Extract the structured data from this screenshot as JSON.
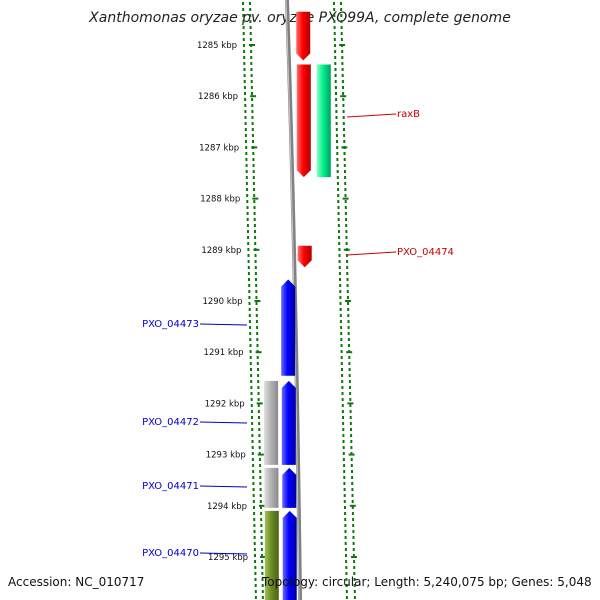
{
  "title": "Xanthomonas oryzae pv. oryzae PXO99A, complete genome",
  "footer": {
    "accession": "Accession: NC_010717",
    "summary": "Topology: circular; Length: 5,240,075 bp; Genes: 5,048"
  },
  "axis": {
    "unit": "kbp",
    "ticks": [
      {
        "value": 1285,
        "label": "1285 kbp"
      },
      {
        "value": 1286,
        "label": "1286 kbp"
      },
      {
        "value": 1287,
        "label": "1287 kbp"
      },
      {
        "value": 1288,
        "label": "1288 kbp"
      },
      {
        "value": 1289,
        "label": "1289 kbp"
      },
      {
        "value": 1290,
        "label": "1290 kbp"
      },
      {
        "value": 1291,
        "label": "1291 kbp"
      },
      {
        "value": 1292,
        "label": "1292 kbp"
      },
      {
        "value": 1293,
        "label": "1293 kbp"
      },
      {
        "value": 1294,
        "label": "1294 kbp"
      },
      {
        "value": 1295,
        "label": "1295 kbp"
      }
    ]
  },
  "genes": [
    {
      "id": "gene-red-1",
      "start": 1284.35,
      "end": 1285.3,
      "track": "forward-1",
      "color": "#ff0000",
      "arrow": "down",
      "label": ""
    },
    {
      "id": "gene-red-2",
      "start": 1285.38,
      "end": 1287.58,
      "track": "forward-1",
      "color": "#ff0000",
      "arrow": "down",
      "label": ""
    },
    {
      "id": "gene-raxB",
      "start": 1285.38,
      "end": 1287.58,
      "track": "forward-2",
      "color": "#00f08c",
      "arrow": "none",
      "label": "raxB"
    },
    {
      "id": "gene-PXO_04474",
      "start": 1288.92,
      "end": 1289.34,
      "track": "forward-1",
      "color": "#ff0000",
      "arrow": "down",
      "label": "PXO_04474"
    },
    {
      "id": "gene-PXO_04473",
      "start": 1289.58,
      "end": 1291.46,
      "track": "reverse-1",
      "color": "#0000ff",
      "arrow": "up",
      "label": "PXO_04473"
    },
    {
      "id": "gene-PXO_04472",
      "start": 1291.56,
      "end": 1293.2,
      "track": "reverse-1",
      "color": "#0000ff",
      "arrow": "up",
      "label": "PXO_04472"
    },
    {
      "id": "gene-grey-1",
      "start": 1291.56,
      "end": 1293.2,
      "track": "reverse-2",
      "color": "#b4b4b4",
      "arrow": "none",
      "label": ""
    },
    {
      "id": "gene-PXO_04471",
      "start": 1293.26,
      "end": 1294.04,
      "track": "reverse-1",
      "color": "#0000ff",
      "arrow": "up",
      "label": "PXO_04471"
    },
    {
      "id": "gene-grey-2",
      "start": 1293.26,
      "end": 1294.04,
      "track": "reverse-2",
      "color": "#b4b4b4",
      "arrow": "none",
      "label": ""
    },
    {
      "id": "gene-PXO_04470",
      "start": 1294.1,
      "end": 1295.9,
      "track": "reverse-1",
      "color": "#0000ff",
      "arrow": "up",
      "label": "PXO_04470"
    },
    {
      "id": "gene-olive-1",
      "start": 1294.1,
      "end": 1295.9,
      "track": "reverse-2",
      "color": "#6b8e23",
      "arrow": "none",
      "label": ""
    }
  ],
  "colors": {
    "forward_label": "#cc0000",
    "reverse_label": "#0000cc",
    "dots": "#0a7a0a",
    "backbone": "#808080"
  }
}
